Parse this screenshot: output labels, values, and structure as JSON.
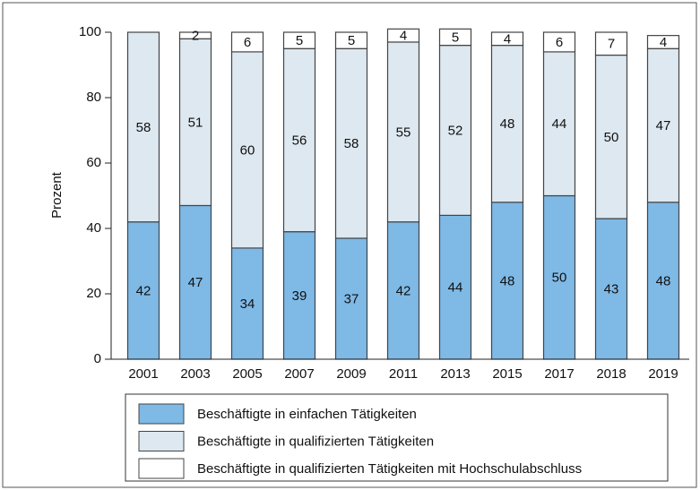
{
  "chart_data": {
    "type": "stacked_bar",
    "y_label": "Prozent",
    "categories": [
      "2001",
      "2003",
      "2005",
      "2007",
      "2009",
      "2011",
      "2013",
      "2015",
      "2017",
      "2018",
      "2019"
    ],
    "series": [
      {
        "name": "Beschäftigte in einfachen Tätigkeiten",
        "color": "#7fb9e6",
        "values": [
          42,
          47,
          34,
          39,
          37,
          42,
          44,
          48,
          50,
          43,
          48
        ]
      },
      {
        "name": "Beschäftigte in qualifizierten Tätigkeiten",
        "color": "#dde8f0",
        "values": [
          58,
          51,
          60,
          56,
          58,
          55,
          52,
          48,
          44,
          50,
          47
        ]
      },
      {
        "name": "Beschäftigte in qualifizierten Tätigkeiten mit Hochschulabschluss",
        "color": "#ffffff",
        "values": [
          null,
          2,
          6,
          5,
          5,
          4,
          5,
          4,
          6,
          7,
          4
        ]
      }
    ],
    "ylim": [
      0,
      100
    ],
    "yticks": [
      0,
      20,
      40,
      60,
      80,
      100
    ]
  }
}
